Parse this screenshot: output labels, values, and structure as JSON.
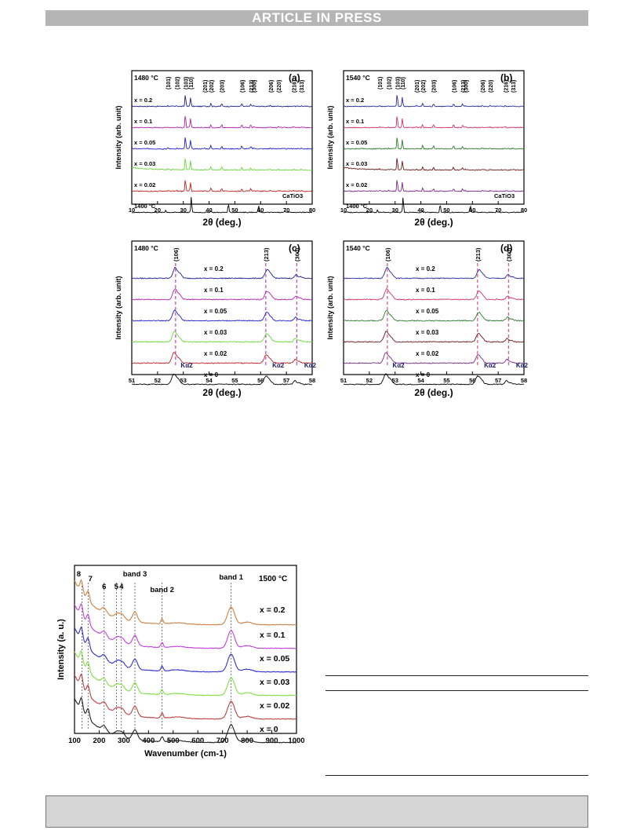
{
  "banner": "ARTICLE IN PRESS",
  "xrd_panels": [
    {
      "letter": "(a)",
      "temperature": "1480 °C",
      "hkl": [
        "(101)",
        "(102)",
        "(103)",
        "(110)",
        "(201)",
        "(202)",
        "(203)",
        "(106)",
        "(213)",
        "(300)",
        "(206)",
        "(220)",
        "(216)",
        "(313)"
      ],
      "hkl_pos": [
        24.0,
        27.5,
        30.8,
        32.8,
        38.3,
        40.7,
        44.9,
        52.7,
        56.2,
        57.3,
        63.8,
        66.9,
        72.8,
        75.8
      ],
      "traces": [
        "x = 0.2",
        "x = 0.1",
        "x = 0.05",
        "x = 0.03",
        "x = 0.02",
        "1400 °C"
      ],
      "ref_label": "CaTiO3",
      "colors": [
        "#1f1f8f",
        "#b020b0",
        "#1f1fcf",
        "#6ad63a",
        "#c02020",
        "#000000"
      ],
      "xlabel": "2θ (deg.)",
      "ylabel": "Intensity (arb. unit)",
      "xlim": [
        10,
        80
      ],
      "xticks": [
        "10",
        "20",
        "30",
        "40",
        "50",
        "60",
        "70",
        "80"
      ]
    },
    {
      "letter": "(b)",
      "temperature": "1540 °C",
      "hkl": [
        "(101)",
        "(102)",
        "(103)",
        "(110)",
        "(201)",
        "(202)",
        "(203)",
        "(106)",
        "(213)",
        "(300)",
        "(206)",
        "(220)",
        "(216)",
        "(313)"
      ],
      "hkl_pos": [
        24.0,
        27.5,
        30.8,
        32.8,
        38.3,
        40.7,
        44.9,
        52.7,
        56.2,
        57.3,
        63.8,
        66.9,
        72.8,
        75.8
      ],
      "traces": [
        "x = 0.2",
        "x = 0.1",
        "x = 0.05",
        "x = 0.03",
        "x = 0.02",
        "1400 °C"
      ],
      "ref_label": "CaTiO3",
      "colors": [
        "#2a2aa0",
        "#d0306a",
        "#2d7a2d",
        "#6a1a1a",
        "#7a2a8a",
        "#000000"
      ],
      "xlabel": "2θ (deg.)",
      "ylabel": "Intensity (arb. unit)",
      "xlim": [
        10,
        80
      ],
      "xticks": [
        "10",
        "20",
        "30",
        "40",
        "50",
        "60",
        "70",
        "80"
      ]
    },
    {
      "letter": "(c)",
      "temperature": "1480 °C",
      "hkl": [
        "(106)",
        "(213)",
        "(300)"
      ],
      "hkl_pos": [
        52.7,
        56.2,
        57.4
      ],
      "traces": [
        "x = 0.2",
        "x = 0.1",
        "x = 0.05",
        "x = 0.03",
        "x = 0.02",
        "x = 0"
      ],
      "kalpha": "Kα2",
      "colors": [
        "#1f1f8f",
        "#b020b0",
        "#1f1fcf",
        "#6ad63a",
        "#c02020",
        "#000000"
      ],
      "xlabel": "2θ (deg.)",
      "ylabel": "Intensity (arb. unit)",
      "xlim": [
        51,
        58
      ],
      "xticks": [
        "51",
        "52",
        "53",
        "54",
        "55",
        "56",
        "57",
        "58"
      ]
    },
    {
      "letter": "(d)",
      "temperature": "1540 °C",
      "hkl": [
        "(106)",
        "(213)",
        "(300)"
      ],
      "hkl_pos": [
        52.7,
        56.2,
        57.4
      ],
      "traces": [
        "x = 0.2",
        "x = 0.1",
        "x = 0.05",
        "x = 0.03",
        "x = 0.02",
        "x = 0"
      ],
      "kalpha": "Kα2",
      "colors": [
        "#2a2aa0",
        "#d0306a",
        "#2d7a2d",
        "#6a1a1a",
        "#7a2a8a",
        "#000000"
      ],
      "xlabel": "2θ (deg.)",
      "ylabel": "Intensity (arb. unit)",
      "xlim": [
        51,
        58
      ],
      "xticks": [
        "51",
        "52",
        "53",
        "54",
        "55",
        "56",
        "57",
        "58"
      ]
    }
  ],
  "raman": {
    "temperature": "1500 °C",
    "band_labels": [
      "8",
      "7",
      "6",
      "5",
      "4",
      "band 3",
      "band 2",
      "band 1"
    ],
    "band_pos": [
      130,
      155,
      220,
      270,
      290,
      345,
      455,
      735
    ],
    "traces": [
      "x = 0.2",
      "x = 0.1",
      "x = 0.05",
      "x = 0.03",
      "x = 0.02",
      "x = 0"
    ],
    "colors": [
      "#d08040",
      "#c040e0",
      "#3030d0",
      "#80e040",
      "#c04040",
      "#202020"
    ],
    "xlabel": "Wavenumber (cm-1)",
    "ylabel": "Intensity (a. u.)",
    "xlim": [
      100,
      1000
    ],
    "xticks": [
      "100",
      "200",
      "300",
      "400",
      "500",
      "600",
      "700",
      "800",
      "900",
      "1000"
    ]
  }
}
